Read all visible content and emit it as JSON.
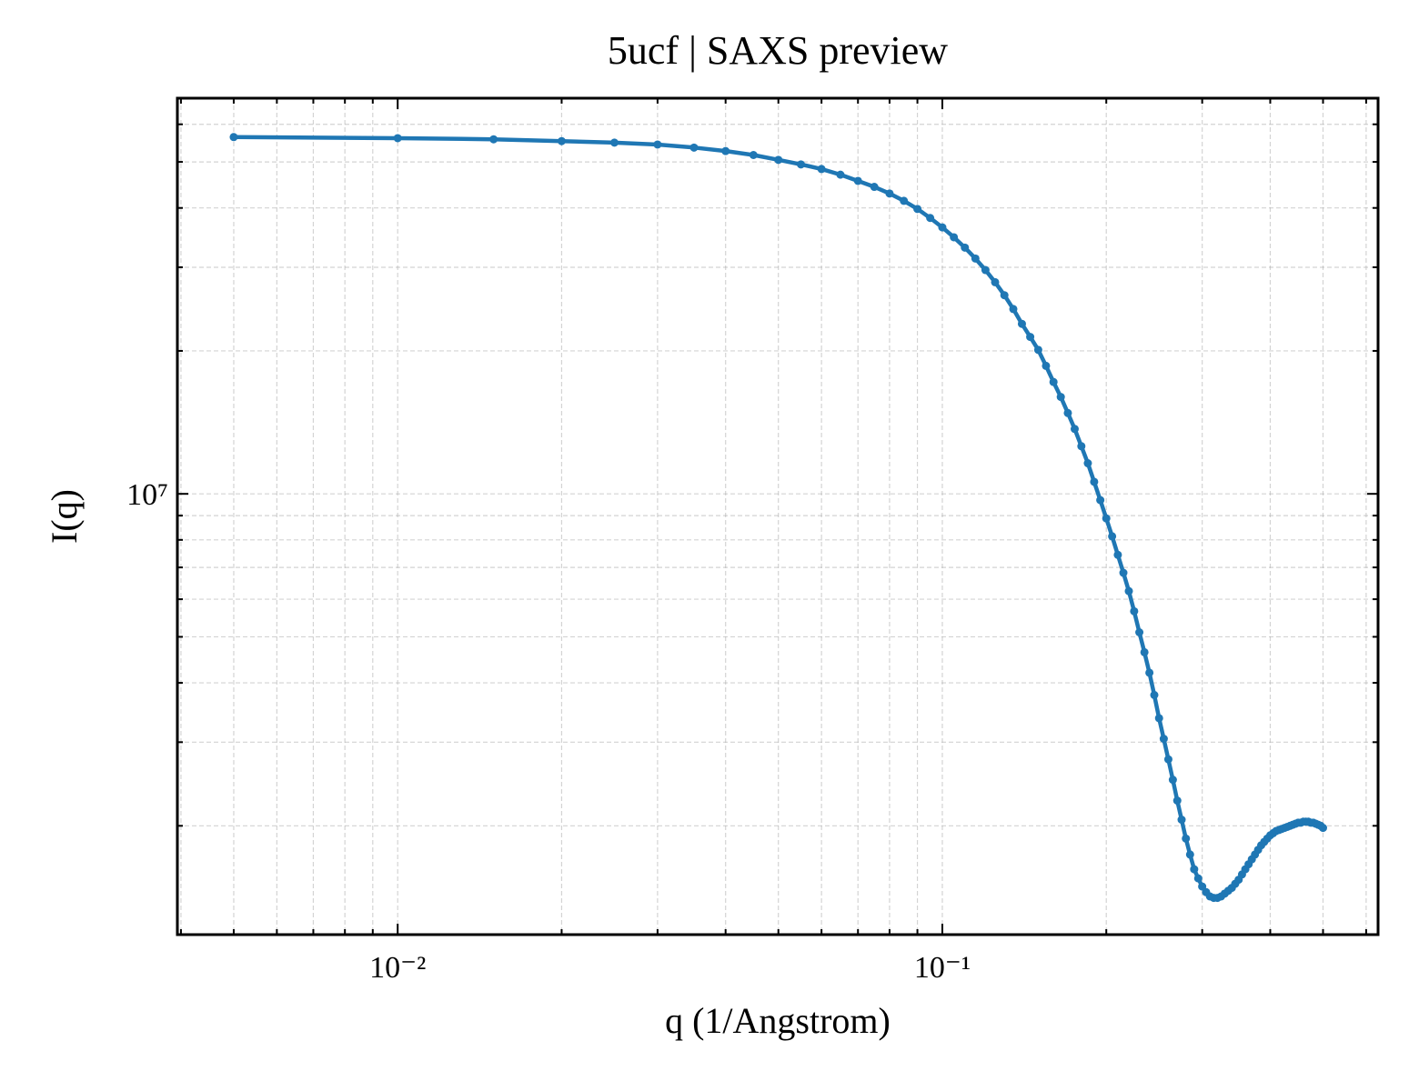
{
  "chart_data": {
    "type": "line",
    "title": "5ucf | SAXS preview",
    "xlabel": "q (1/Angstrom)",
    "ylabel": "I(q)",
    "xscale": "log",
    "yscale": "log",
    "grid": true,
    "xlim": [
      0.00394,
      0.631
    ],
    "ylim": [
      1180000,
      68100000
    ],
    "xticks": [
      {
        "value": 0.01,
        "label": "10⁻²"
      },
      {
        "value": 0.1,
        "label": "10⁻¹"
      }
    ],
    "yticks": [
      {
        "value": 10000000,
        "label": "10⁷"
      }
    ],
    "xminorticks": [
      0.004,
      0.005,
      0.006,
      0.007,
      0.008,
      0.009,
      0.02,
      0.03,
      0.04,
      0.05,
      0.06,
      0.07,
      0.08,
      0.09,
      0.2,
      0.3,
      0.4,
      0.5,
      0.6
    ],
    "yminorticks": [
      2000000,
      3000000,
      4000000,
      5000000,
      6000000,
      7000000,
      8000000,
      9000000,
      20000000,
      30000000,
      40000000,
      50000000,
      60000000
    ],
    "x": [
      0.005,
      0.01,
      0.015,
      0.02,
      0.025,
      0.03,
      0.035,
      0.04,
      0.045,
      0.05,
      0.055,
      0.06,
      0.065,
      0.07,
      0.075,
      0.08,
      0.085,
      0.09,
      0.095,
      0.1,
      0.105,
      0.11,
      0.115,
      0.12,
      0.125,
      0.13,
      0.135,
      0.14,
      0.145,
      0.15,
      0.155,
      0.16,
      0.165,
      0.17,
      0.175,
      0.18,
      0.185,
      0.19,
      0.195,
      0.2,
      0.205,
      0.21,
      0.215,
      0.22,
      0.225,
      0.23,
      0.235,
      0.24,
      0.245,
      0.25,
      0.255,
      0.26,
      0.265,
      0.27,
      0.275,
      0.28,
      0.285,
      0.29,
      0.295,
      0.3,
      0.305,
      0.31,
      0.315,
      0.32,
      0.325,
      0.33,
      0.335,
      0.34,
      0.345,
      0.35,
      0.355,
      0.36,
      0.365,
      0.37,
      0.375,
      0.38,
      0.385,
      0.39,
      0.395,
      0.4,
      0.405,
      0.41,
      0.415,
      0.42,
      0.425,
      0.43,
      0.435,
      0.44,
      0.445,
      0.45,
      0.455,
      0.46,
      0.465,
      0.47,
      0.475,
      0.48,
      0.485,
      0.49,
      0.495,
      0.5
    ],
    "series": [
      {
        "color": "#1f77b4",
        "values": [
          56400000,
          56100000,
          55800000,
          55300000,
          54900000,
          54400000,
          53600000,
          52700000,
          51700000,
          50500000,
          49400000,
          48300000,
          47000000,
          45600000,
          44300000,
          42900000,
          41400000,
          39800000,
          38100000,
          36400000,
          34700000,
          33000000,
          31300000,
          29600000,
          27900000,
          26200000,
          24500000,
          22800000,
          21400000,
          20100000,
          18600000,
          17200000,
          16000000,
          14800000,
          13700000,
          12600000,
          11600000,
          10600000,
          9700000,
          8880000,
          8140000,
          7440000,
          6820000,
          6240000,
          5660000,
          5110000,
          4640000,
          4200000,
          3770000,
          3370000,
          3050000,
          2760000,
          2500000,
          2260000,
          2060000,
          1880000,
          1740000,
          1620000,
          1550000,
          1490000,
          1450000,
          1420000,
          1410000,
          1410000,
          1420000,
          1440000,
          1460000,
          1480000,
          1510000,
          1540000,
          1580000,
          1620000,
          1660000,
          1700000,
          1740000,
          1780000,
          1820000,
          1850000,
          1880000,
          1910000,
          1930000,
          1950000,
          1960000,
          1970000,
          1980000,
          1990000,
          2000000,
          2010000,
          2020000,
          2030000,
          2030000,
          2040000,
          2040000,
          2040000,
          2030000,
          2030000,
          2020000,
          2010000,
          2000000,
          1980000
        ]
      }
    ]
  }
}
